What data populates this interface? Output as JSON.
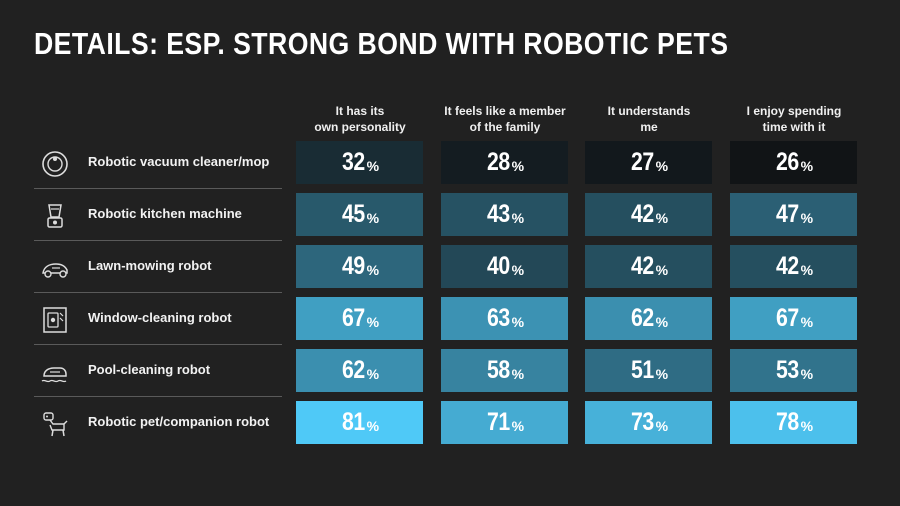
{
  "title": "DETAILS: ESP. STRONG BOND WITH ROBOTIC PETS",
  "chart_data": {
    "type": "table",
    "title": "DETAILS: ESP. STRONG BOND WITH ROBOTIC PETS",
    "columns": [
      "It has its own personality",
      "It feels like a member of the family",
      "It understands me",
      "I enjoy spending time with it"
    ],
    "column_lines": [
      [
        "It has its",
        "own personality"
      ],
      [
        "It feels like a member",
        "of the family"
      ],
      [
        "It understands",
        "me"
      ],
      [
        "I enjoy spending",
        "time with it"
      ]
    ],
    "rows": [
      {
        "label": "Robotic vacuum cleaner/mop",
        "icon": "vacuum-robot-icon",
        "values": [
          32,
          28,
          27,
          26
        ]
      },
      {
        "label": "Robotic kitchen machine",
        "icon": "kitchen-machine-icon",
        "values": [
          45,
          43,
          42,
          47
        ]
      },
      {
        "label": "Lawn-mowing robot",
        "icon": "lawn-mower-icon",
        "values": [
          49,
          40,
          42,
          42
        ]
      },
      {
        "label": "Window-cleaning robot",
        "icon": "window-robot-icon",
        "values": [
          67,
          63,
          62,
          67
        ]
      },
      {
        "label": "Pool-cleaning robot",
        "icon": "pool-robot-icon",
        "values": [
          62,
          58,
          51,
          53
        ]
      },
      {
        "label": "Robotic pet/companion robot",
        "icon": "robot-dog-icon",
        "values": [
          81,
          71,
          73,
          78
        ]
      }
    ],
    "unit": "%"
  },
  "colors": {
    "background": "#212121",
    "scale_low": "#0f0f10",
    "scale_high": "#4fc9f7"
  }
}
